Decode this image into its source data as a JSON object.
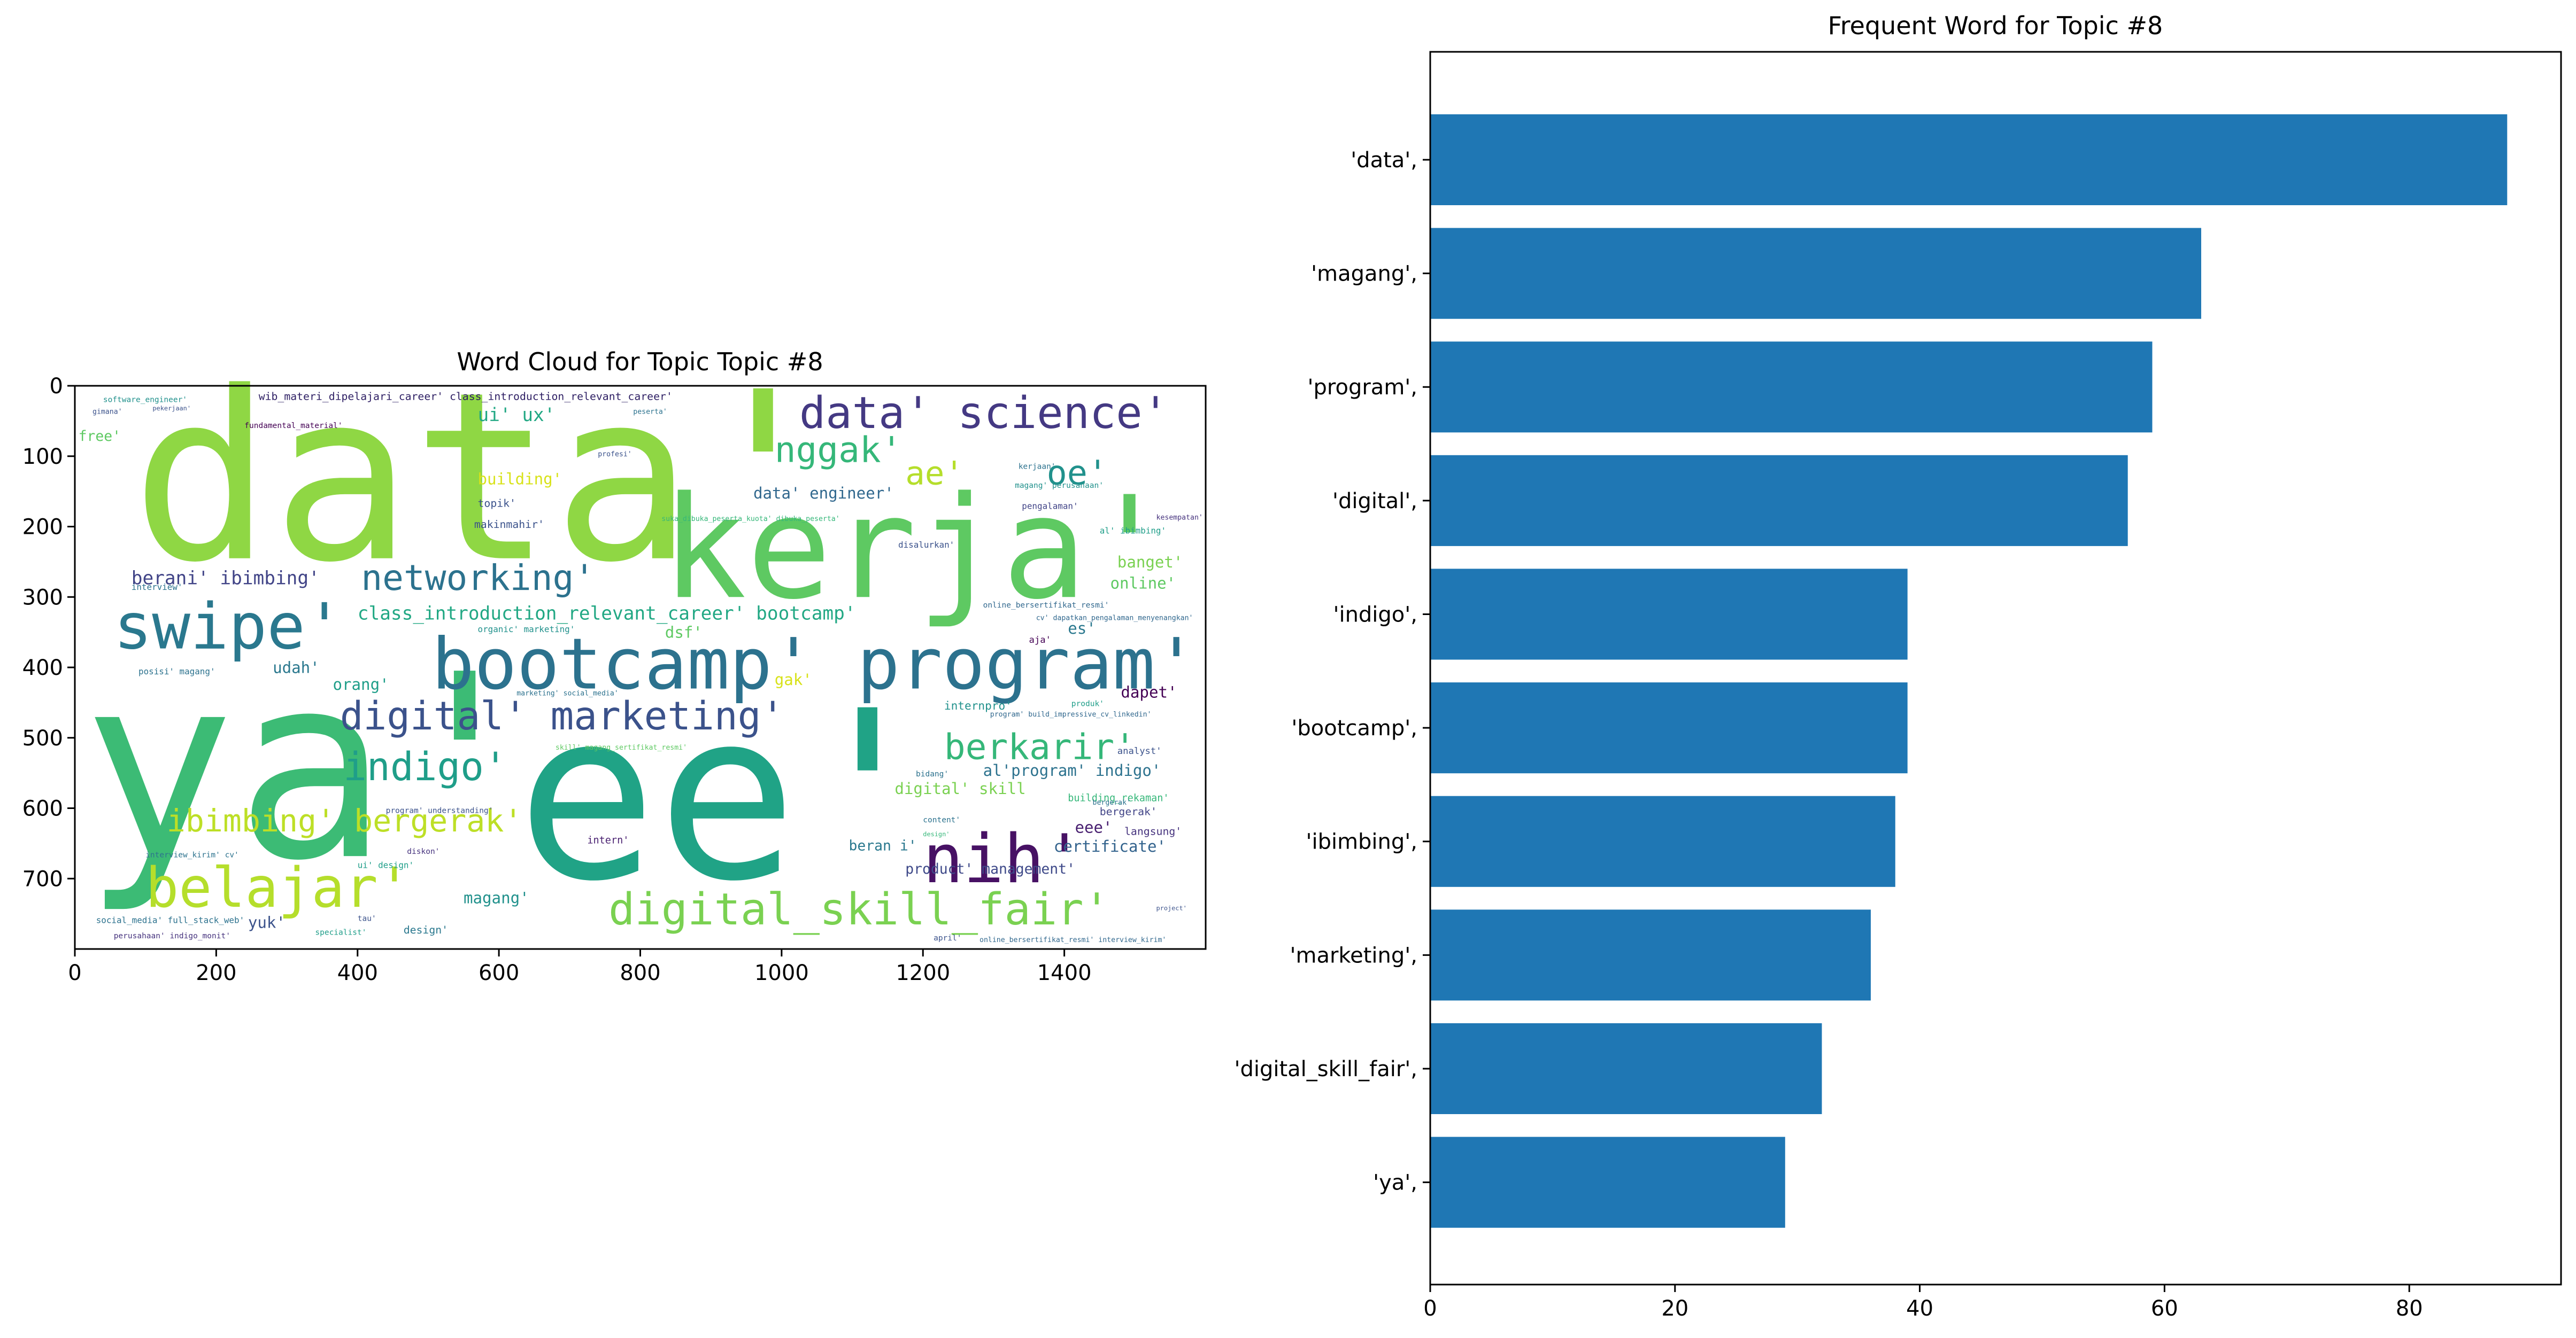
{
  "chart_data": [
    {
      "type": "wordcloud",
      "title": "Word Cloud for Topic Topic #8",
      "xticks": [
        0,
        200,
        400,
        600,
        800,
        1000,
        1200,
        1400
      ],
      "yticks": [
        0,
        100,
        200,
        300,
        400,
        500,
        600,
        700
      ],
      "xlim": [
        0,
        1600
      ],
      "ylim": [
        800,
        0
      ],
      "words": [
        {
          "text": "data'",
          "x": 80,
          "y": 245,
          "size": 330,
          "color": "#8fd744"
        },
        {
          "text": "ya'",
          "x": 10,
          "y": 668,
          "size": 360,
          "color": "#3cbb75"
        },
        {
          "text": "ee'",
          "x": 625,
          "y": 698,
          "size": 330,
          "color": "#20a386"
        },
        {
          "text": "kerja'",
          "x": 830,
          "y": 300,
          "size": 200,
          "color": "#5ec962"
        },
        {
          "text": "bootcamp' program'",
          "x": 505,
          "y": 430,
          "size": 100,
          "color": "#2c728e"
        },
        {
          "text": "swipe'",
          "x": 55,
          "y": 373,
          "size": 90,
          "color": "#2a788e"
        },
        {
          "text": "data' science'",
          "x": 1025,
          "y": 60,
          "size": 62,
          "color": "#443983"
        },
        {
          "text": "nggak'",
          "x": 990,
          "y": 108,
          "size": 50,
          "color": "#35b779"
        },
        {
          "text": "oe'",
          "x": 1375,
          "y": 140,
          "size": 48,
          "color": "#21918c"
        },
        {
          "text": "ae'",
          "x": 1175,
          "y": 140,
          "size": 46,
          "color": "#b5de2b"
        },
        {
          "text": "networking'",
          "x": 405,
          "y": 290,
          "size": 50,
          "color": "#2c728e"
        },
        {
          "text": "digital' marketing'",
          "x": 375,
          "y": 488,
          "size": 55,
          "color": "#3b528b"
        },
        {
          "text": "indigo'",
          "x": 380,
          "y": 560,
          "size": 55,
          "color": "#1f9e89"
        },
        {
          "text": "berkarir'",
          "x": 1230,
          "y": 530,
          "size": 50,
          "color": "#35b779"
        },
        {
          "text": "ibimbing' bergerak'",
          "x": 130,
          "y": 633,
          "size": 44,
          "color": "#bddf26"
        },
        {
          "text": "nih'",
          "x": 1200,
          "y": 705,
          "size": 95,
          "color": "#471164"
        },
        {
          "text": "belajar'",
          "x": 100,
          "y": 740,
          "size": 78,
          "color": "#b5de2b"
        },
        {
          "text": "digital_skill_fair'",
          "x": 755,
          "y": 765,
          "size": 62,
          "color": "#7ad151"
        },
        {
          "text": "class_introduction_relevant_career' bootcamp'",
          "x": 400,
          "y": 332,
          "size": 26,
          "color": "#22a884"
        },
        {
          "text": "berani' ibimbing'",
          "x": 80,
          "y": 282,
          "size": 26,
          "color": "#414487"
        },
        {
          "text": "ui' ux'",
          "x": 570,
          "y": 50,
          "size": 26,
          "color": "#22a884"
        },
        {
          "text": "building'",
          "x": 570,
          "y": 140,
          "size": 22,
          "color": "#d8e219"
        },
        {
          "text": "data' engineer'",
          "x": 960,
          "y": 160,
          "size": 22,
          "color": "#31688e"
        },
        {
          "text": "banget'",
          "x": 1475,
          "y": 258,
          "size": 22,
          "color": "#7ad151"
        },
        {
          "text": "online'",
          "x": 1465,
          "y": 288,
          "size": 22,
          "color": "#5ec962"
        },
        {
          "text": "dsf'",
          "x": 835,
          "y": 358,
          "size": 22,
          "color": "#5ec962"
        },
        {
          "text": "es'",
          "x": 1405,
          "y": 352,
          "size": 22,
          "color": "#2a788e"
        },
        {
          "text": "gak'",
          "x": 990,
          "y": 425,
          "size": 22,
          "color": "#d8e219"
        },
        {
          "text": "orang'",
          "x": 365,
          "y": 432,
          "size": 22,
          "color": "#1f9e89"
        },
        {
          "text": "udah'",
          "x": 280,
          "y": 408,
          "size": 22,
          "color": "#2a788e"
        },
        {
          "text": "dapet'",
          "x": 1480,
          "y": 443,
          "size": 22,
          "color": "#440154"
        },
        {
          "text": "al'program' indigo'",
          "x": 1285,
          "y": 554,
          "size": 22,
          "color": "#2c728e"
        },
        {
          "text": "digital' skill",
          "x": 1160,
          "y": 580,
          "size": 22,
          "color": "#7ad151"
        },
        {
          "text": "certificate'",
          "x": 1385,
          "y": 662,
          "size": 22,
          "color": "#33638d"
        },
        {
          "text": "eee'",
          "x": 1415,
          "y": 635,
          "size": 22,
          "color": "#481f70"
        },
        {
          "text": "product' management'",
          "x": 1175,
          "y": 693,
          "size": 20,
          "color": "#3e4989"
        },
        {
          "text": "magang'",
          "x": 550,
          "y": 735,
          "size": 22,
          "color": "#21918c"
        },
        {
          "text": "yuk'",
          "x": 245,
          "y": 770,
          "size": 22,
          "color": "#3b528b"
        },
        {
          "text": "free'",
          "x": 5,
          "y": 78,
          "size": 20,
          "color": "#5ec962"
        },
        {
          "text": "beran i'",
          "x": 1095,
          "y": 660,
          "size": 20,
          "color": "#2a788e"
        },
        {
          "text": "topik'",
          "x": 570,
          "y": 172,
          "size": 15,
          "color": "#3b528b"
        },
        {
          "text": "makinmahir'",
          "x": 565,
          "y": 202,
          "size": 15,
          "color": "#3b528b"
        },
        {
          "text": "wib_materi_dipelajari_career' class_introduction_relevant_career'",
          "x": 260,
          "y": 20,
          "size": 15,
          "color": "#2d1e63"
        },
        {
          "text": "internpro'",
          "x": 1230,
          "y": 460,
          "size": 16,
          "color": "#21918c"
        },
        {
          "text": "bergerak'",
          "x": 1450,
          "y": 610,
          "size": 15,
          "color": "#414487"
        },
        {
          "text": "building_rekaman'",
          "x": 1405,
          "y": 590,
          "size": 14,
          "color": "#35b779"
        },
        {
          "text": "langsung'",
          "x": 1485,
          "y": 638,
          "size": 15,
          "color": "#46337e"
        },
        {
          "text": "design'",
          "x": 465,
          "y": 778,
          "size": 15,
          "color": "#2a788e"
        },
        {
          "text": "intern'",
          "x": 725,
          "y": 650,
          "size": 14,
          "color": "#481f70"
        },
        {
          "text": "analyst'",
          "x": 1475,
          "y": 523,
          "size": 13,
          "color": "#3b528b"
        },
        {
          "text": "al' ibimbing'",
          "x": 1450,
          "y": 210,
          "size": 12,
          "color": "#1f9e89"
        },
        {
          "text": "disalurkan'",
          "x": 1165,
          "y": 230,
          "size": 12,
          "color": "#3b528b"
        },
        {
          "text": "pengalaman'",
          "x": 1340,
          "y": 175,
          "size": 12,
          "color": "#414487"
        },
        {
          "text": "interview'",
          "x": 80,
          "y": 290,
          "size": 12,
          "color": "#2c728e"
        },
        {
          "text": "software_engineer'",
          "x": 40,
          "y": 23,
          "size": 11,
          "color": "#21918c"
        },
        {
          "text": "fundamental_material'",
          "x": 240,
          "y": 60,
          "size": 11,
          "color": "#440154"
        },
        {
          "text": "aja'",
          "x": 1350,
          "y": 365,
          "size": 13,
          "color": "#440154"
        },
        {
          "text": "online_bersertifikat_resmi'",
          "x": 1285,
          "y": 315,
          "size": 11,
          "color": "#31688e"
        },
        {
          "text": "online_bersertifikat_resmi' interview_kirim'",
          "x": 1280,
          "y": 790,
          "size": 10,
          "color": "#31688e"
        },
        {
          "text": "social_media' full_stack_web'",
          "x": 30,
          "y": 763,
          "size": 12,
          "color": "#2c728e"
        },
        {
          "text": "perusahaan' indigo_monit'",
          "x": 55,
          "y": 785,
          "size": 11,
          "color": "#46337e"
        },
        {
          "text": "posisi' magang'",
          "x": 90,
          "y": 410,
          "size": 12,
          "color": "#2c728e"
        },
        {
          "text": "organic' marketing'",
          "x": 570,
          "y": 350,
          "size": 12,
          "color": "#21918c"
        },
        {
          "text": "ui' design'",
          "x": 400,
          "y": 685,
          "size": 12,
          "color": "#1f9e89"
        },
        {
          "text": "program' understanding'",
          "x": 440,
          "y": 607,
          "size": 11,
          "color": "#3b528b"
        },
        {
          "text": "interview_kirim' cv'",
          "x": 100,
          "y": 670,
          "size": 11,
          "color": "#2c728e"
        },
        {
          "text": "specialist'",
          "x": 340,
          "y": 780,
          "size": 11,
          "color": "#1f9e89"
        },
        {
          "text": "tau'",
          "x": 400,
          "y": 760,
          "size": 11,
          "color": "#3b528b"
        },
        {
          "text": "content'",
          "x": 1200,
          "y": 620,
          "size": 11,
          "color": "#2c728e"
        },
        {
          "text": "bidang'",
          "x": 1190,
          "y": 555,
          "size": 11,
          "color": "#2c728e"
        },
        {
          "text": "april'",
          "x": 1215,
          "y": 788,
          "size": 11,
          "color": "#3b528b"
        },
        {
          "text": "produk'",
          "x": 1410,
          "y": 455,
          "size": 11,
          "color": "#1f9e89"
        },
        {
          "text": "diskon'",
          "x": 470,
          "y": 665,
          "size": 11,
          "color": "#46337e"
        },
        {
          "text": "kerjaan'",
          "x": 1335,
          "y": 118,
          "size": 11,
          "color": "#2c728e"
        },
        {
          "text": "magang' perusahaan'",
          "x": 1330,
          "y": 145,
          "size": 11,
          "color": "#21918c"
        },
        {
          "text": "kesempatan'",
          "x": 1530,
          "y": 190,
          "size": 10,
          "color": "#46337e"
        },
        {
          "text": "cv' dapatkan_pengalaman_menyenangkan'",
          "x": 1360,
          "y": 333,
          "size": 10,
          "color": "#31688e"
        },
        {
          "text": "program' build_impressive_cv_linkedin'",
          "x": 1295,
          "y": 470,
          "size": 10,
          "color": "#31688e"
        },
        {
          "text": "suka_dibuka_peserta_kuota' dibuka_peserta'",
          "x": 830,
          "y": 192,
          "size": 10,
          "color": "#35b779"
        },
        {
          "text": "skill' magang_sertifikat_resmi'",
          "x": 680,
          "y": 517,
          "size": 10,
          "color": "#5ec962"
        },
        {
          "text": "peserta'",
          "x": 790,
          "y": 40,
          "size": 10,
          "color": "#2c728e"
        },
        {
          "text": "profesi'",
          "x": 740,
          "y": 100,
          "size": 10,
          "color": "#3b528b"
        },
        {
          "text": "gimana'",
          "x": 25,
          "y": 40,
          "size": 10,
          "color": "#3b528b"
        },
        {
          "text": "pekerjaan'",
          "x": 110,
          "y": 35,
          "size": 9,
          "color": "#3b528b"
        },
        {
          "text": "bergerak'",
          "x": 1440,
          "y": 595,
          "size": 10,
          "color": "#2c728e"
        },
        {
          "text": "marketing' social_media'",
          "x": 625,
          "y": 440,
          "size": 10,
          "color": "#2c728e"
        },
        {
          "text": "design'",
          "x": 1200,
          "y": 640,
          "size": 9,
          "color": "#35b779"
        },
        {
          "text": "project'",
          "x": 1530,
          "y": 745,
          "size": 9,
          "color": "#3b528b"
        }
      ]
    },
    {
      "type": "bar",
      "orientation": "horizontal",
      "title": "Frequent Word for Topic #8",
      "categories": [
        "'data',",
        "'magang',",
        "'program',",
        "'digital',",
        "'indigo',",
        "'bootcamp',",
        "'ibimbing',",
        "'marketing',",
        "'digital_skill_fair',",
        "'ya',"
      ],
      "values": [
        88,
        63,
        59,
        57,
        39,
        39,
        38,
        36,
        32,
        29
      ],
      "xticks": [
        0,
        20,
        40,
        60,
        80
      ],
      "xlim": [
        0,
        92.4
      ],
      "bar_color": "#1f77b4"
    }
  ]
}
